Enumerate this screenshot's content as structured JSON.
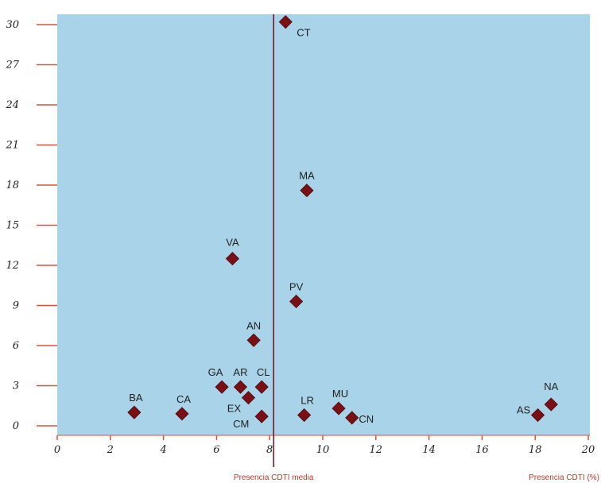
{
  "chart_data": {
    "type": "scatter",
    "xlim": [
      0,
      20
    ],
    "ylim": [
      0,
      30
    ],
    "x_ticks": [
      "0",
      "2",
      "4",
      "6",
      "8",
      "10",
      "12",
      "14",
      "16",
      "18",
      "20"
    ],
    "y_ticks": [
      "0",
      "3",
      "6",
      "9",
      "12",
      "15",
      "18",
      "21",
      "24",
      "27",
      "30"
    ],
    "reference_line": {
      "x": 8.15,
      "label": "Presencia CDTI media"
    },
    "xlabel": "Presencia CDTI (%)",
    "ylabel": "",
    "grid": false,
    "background_color": "#a9d3e9",
    "marker_color": "#7a0f14",
    "axis_color": "#d9533a",
    "reference_line_color": "#6b1020",
    "points": [
      {
        "label": "CT",
        "x": 8.6,
        "y": 30.2
      },
      {
        "label": "MA",
        "x": 9.4,
        "y": 17.6
      },
      {
        "label": "VA",
        "x": 6.6,
        "y": 12.5
      },
      {
        "label": "PV",
        "x": 9.0,
        "y": 9.3
      },
      {
        "label": "AN",
        "x": 7.4,
        "y": 6.4
      },
      {
        "label": "GA",
        "x": 6.2,
        "y": 2.9
      },
      {
        "label": "AR",
        "x": 6.9,
        "y": 2.9
      },
      {
        "label": "CL",
        "x": 7.7,
        "y": 2.9
      },
      {
        "label": "EX",
        "x": 7.2,
        "y": 2.1
      },
      {
        "label": "CM",
        "x": 7.7,
        "y": 0.7
      },
      {
        "label": "BA",
        "x": 2.9,
        "y": 1.0
      },
      {
        "label": "CA",
        "x": 4.7,
        "y": 0.9
      },
      {
        "label": "LR",
        "x": 9.3,
        "y": 0.8
      },
      {
        "label": "MU",
        "x": 10.6,
        "y": 1.3
      },
      {
        "label": "CN",
        "x": 11.1,
        "y": 0.6
      },
      {
        "label": "AS",
        "x": 18.1,
        "y": 0.8
      },
      {
        "label": "NA",
        "x": 18.6,
        "y": 1.6
      }
    ]
  }
}
